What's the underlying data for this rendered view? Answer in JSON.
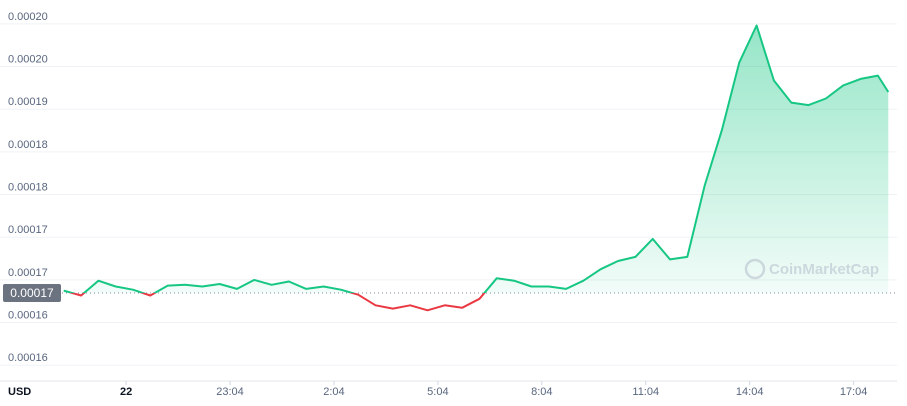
{
  "chart_data": {
    "type": "line",
    "unit": "USD",
    "watermark": "CoinMarketCap",
    "x": [
      -1.8,
      -1.3,
      -0.8,
      -0.3,
      0.2,
      0.7,
      1.2,
      1.7,
      2.2,
      2.7,
      3.2,
      3.7,
      4.2,
      4.7,
      5.2,
      5.7,
      6.2,
      6.7,
      7.2,
      7.7,
      8.2,
      8.7,
      9.2,
      9.7,
      10.2,
      10.7,
      11.2,
      11.7,
      12.2,
      12.7,
      13.2,
      13.7,
      14.2,
      14.7,
      15.2,
      15.7,
      16.2,
      16.7,
      17.2,
      17.7,
      18.2,
      18.7,
      19.2,
      19.7,
      20.2,
      20.7,
      21.2,
      21.7,
      22.0
    ],
    "series": [
      {
        "color": "#16c784",
        "down_color": "#ea3943",
        "values": [
          0.0001679,
          0.0001673,
          0.0001691,
          0.0001684,
          0.000168,
          0.0001673,
          0.0001685,
          0.0001686,
          0.0001684,
          0.0001687,
          0.0001681,
          0.0001692,
          0.0001686,
          0.000169,
          0.0001681,
          0.0001684,
          0.000168,
          0.0001674,
          0.0001661,
          0.0001657,
          0.0001661,
          0.0001655,
          0.0001661,
          0.0001658,
          0.0001669,
          0.0001694,
          0.0001691,
          0.0001684,
          0.0001684,
          0.0001681,
          0.0001691,
          0.0001705,
          0.0001715,
          0.000172,
          0.0001742,
          0.0001717,
          0.000172,
          0.0001807,
          0.0001875,
          0.0001957,
          0.0002002,
          0.0001935,
          0.0001908,
          0.0001905,
          0.0001913,
          0.0001929,
          0.0001937,
          0.0001941,
          0.0001921
        ]
      }
    ],
    "reference": {
      "value": 0.0001676,
      "label": "0.00017"
    },
    "xlim": [
      -1.85,
      22.05
    ],
    "xticks": [
      {
        "value": 0,
        "label": "22"
      },
      {
        "value": 3,
        "label": "23:04"
      },
      {
        "value": 6,
        "label": "2:04"
      },
      {
        "value": 9,
        "label": "5:04"
      },
      {
        "value": 12,
        "label": "8:04"
      },
      {
        "value": 15,
        "label": "11:04"
      },
      {
        "value": 18,
        "label": "14:04"
      },
      {
        "value": 21,
        "label": "17:04"
      }
    ],
    "ylim": [
      0.000157,
      0.0002027
    ],
    "yticks": [
      {
        "value": 0.0002004,
        "label": "0.00020"
      },
      {
        "value": 0.0001952,
        "label": "0.00020"
      },
      {
        "value": 0.00019,
        "label": "0.00019"
      },
      {
        "value": 0.0001848,
        "label": "0.00018"
      },
      {
        "value": 0.0001796,
        "label": "0.00018"
      },
      {
        "value": 0.0001744,
        "label": "0.00017"
      },
      {
        "value": 0.0001692,
        "label": "0.00017"
      },
      {
        "value": 0.000164,
        "label": "0.00016"
      },
      {
        "value": 0.0001588,
        "label": "0.00016"
      }
    ],
    "grid": true
  }
}
